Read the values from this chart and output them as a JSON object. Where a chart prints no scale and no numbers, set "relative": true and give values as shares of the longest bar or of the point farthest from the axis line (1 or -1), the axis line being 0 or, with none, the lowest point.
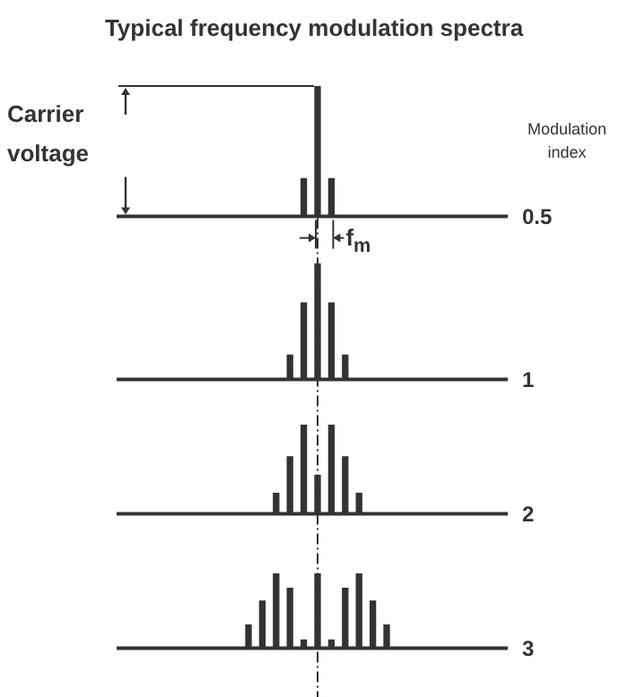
{
  "chart_data": [
    {
      "type": "bar",
      "title": "Typical frequency modulation spectra",
      "y2label": "0.5",
      "relative": true,
      "color": "#333333",
      "categories": [
        null,
        null,
        null
      ],
      "values": [
        0.29,
        1,
        0.29
      ],
      "annotations": [
        "Carrier voltage",
        "Modulation index",
        "f$_{m}$"
      ]
    },
    {
      "type": "bar",
      "y2label": "1",
      "relative": true,
      "color": "#333333",
      "categories": [
        null,
        null,
        null,
        null,
        null
      ],
      "values": [
        0.21,
        0.66,
        1,
        0.66,
        0.21
      ]
    },
    {
      "type": "bar",
      "y2label": "2",
      "relative": true,
      "color": "#333333",
      "categories": [
        null,
        null,
        null,
        null,
        null,
        null,
        null
      ],
      "values": [
        0.23,
        0.64,
        1,
        0.43,
        1,
        0.64,
        0.23
      ]
    },
    {
      "type": "bar",
      "y2label": "3",
      "relative": true,
      "color": "#333333",
      "categories": [
        null,
        null,
        null,
        null,
        null,
        null,
        null,
        null,
        null,
        null,
        null
      ],
      "values": [
        0.31,
        0.63,
        1,
        0.8,
        0.11,
        1,
        0.11,
        0.8,
        1,
        0.63,
        0.31
      ]
    }
  ]
}
